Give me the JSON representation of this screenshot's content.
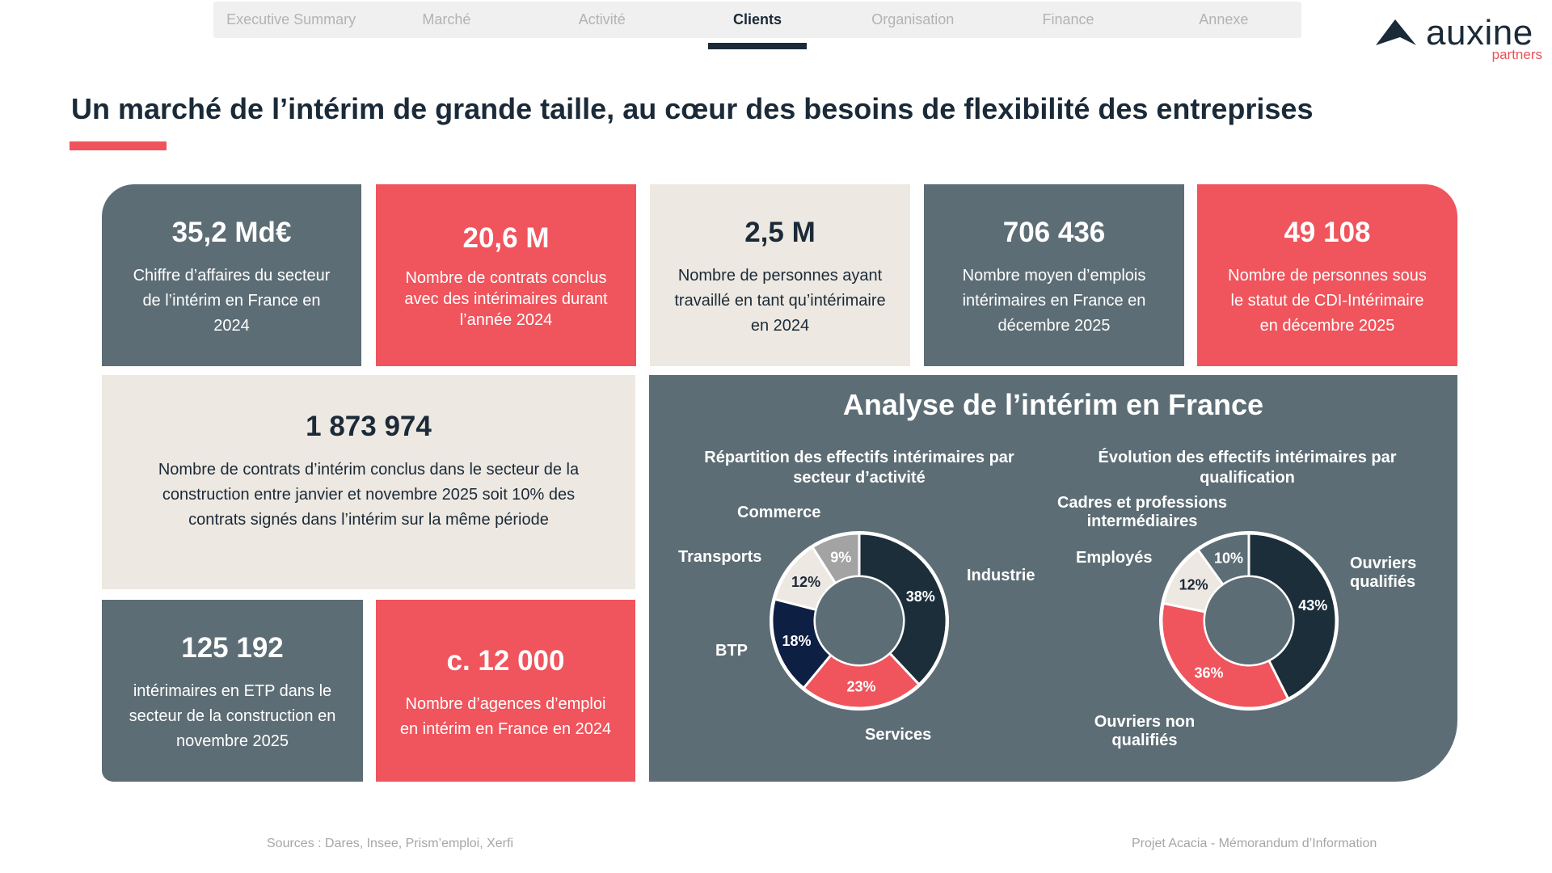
{
  "nav": {
    "tabs": [
      {
        "label": "Executive Summary",
        "active": false
      },
      {
        "label": "Marché",
        "active": false
      },
      {
        "label": "Activité",
        "active": false
      },
      {
        "label": "Clients",
        "active": true
      },
      {
        "label": "Organisation",
        "active": false
      },
      {
        "label": "Finance",
        "active": false
      },
      {
        "label": "Annexe",
        "active": false
      }
    ]
  },
  "logo": {
    "word": "auxine",
    "sub": "partners",
    "icon": "auxine-logo-icon"
  },
  "title": "Un marché de l’intérim de grande taille, au cœur des besoins de flexibilité des entreprises",
  "cards": [
    {
      "value": "35,2 Md€",
      "lines": [
        "Chiffre d’affaires du secteur",
        "de l’intérim en France en",
        "2024"
      ]
    },
    {
      "value": "20,6 M",
      "lines": [
        "Nombre de contrats conclus",
        "avec des intérimaires durant",
        "l’année 2024"
      ]
    },
    {
      "value": "2,5 M",
      "lines": [
        "Nombre de personnes ayant",
        "travaillé en tant qu’intérimaire",
        "en 2024"
      ]
    },
    {
      "value": "706 436",
      "lines": [
        "Nombre moyen d’emplois",
        "intérimaires en France en",
        "décembre 2025"
      ]
    },
    {
      "value": "49 108",
      "lines": [
        "Nombre de personnes sous",
        "le statut de CDI-Intérimaire",
        "en décembre 2025"
      ]
    },
    {
      "value": "1 873 974",
      "lines": [
        "Nombre de contrats d’intérim conclus dans le secteur de la",
        "construction entre janvier et novembre 2025 soit 10% des",
        "contrats signés dans l’intérim sur la même période"
      ]
    },
    {
      "value": "125 192",
      "lines": [
        "intérimaires en ETP dans le",
        "secteur de la construction en",
        "novembre 2025"
      ]
    },
    {
      "value": "c. 12 000",
      "lines": [
        "Nombre d’agences d’emploi",
        "en intérim en France en 2024"
      ]
    }
  ],
  "panel": {
    "title": "Analyse de l’intérim en France"
  },
  "chart_data": [
    {
      "type": "pie",
      "title": "Répartition des effectifs intérimaires par secteur d’activité",
      "title_lines": [
        "Répartition des effectifs intérimaires par",
        "secteur d’activité"
      ],
      "categories": [
        "Industrie",
        "Services",
        "BTP",
        "Transports",
        "Commerce"
      ],
      "values": [
        38,
        23,
        18,
        12,
        9
      ],
      "value_labels": [
        "38%",
        "23%",
        "18%",
        "12%",
        "9%"
      ],
      "colors": [
        "#1b2e3a",
        "#f0545c",
        "#0e1f44",
        "#ede8e1",
        "#a3a3a3"
      ],
      "label_colors": [
        "#ffffff",
        "#ffffff",
        "#ffffff",
        "#1b2a38",
        "#ffffff"
      ],
      "legend_lines": [
        [
          "Industrie"
        ],
        [
          "Services"
        ],
        [
          "BTP"
        ],
        [
          "Transports"
        ],
        [
          "Commerce"
        ]
      ]
    },
    {
      "type": "pie",
      "title": "Évolution des effectifs intérimaires par qualification",
      "title_lines": [
        "Évolution des effectifs intérimaires par",
        "qualification"
      ],
      "categories": [
        "Ouvriers qualifiés",
        "Ouvriers non qualifiés",
        "Employés",
        "Cadres et professions intermédiaires"
      ],
      "values": [
        43,
        36,
        12,
        10
      ],
      "value_labels": [
        "43%",
        "36%",
        "12%",
        "10%"
      ],
      "colors": [
        "#1b2e3a",
        "#f0545c",
        "#ede8e1",
        "#5d6d75"
      ],
      "label_colors": [
        "#ffffff",
        "#ffffff",
        "#1b2a38",
        "#ffffff"
      ],
      "legend_lines": [
        [
          "Ouvriers",
          "qualifiés"
        ],
        [
          "Ouvriers non",
          "qualifiés"
        ],
        [
          "Employés"
        ],
        [
          "Cadres et professions",
          "intermédiaires"
        ]
      ]
    }
  ],
  "footer": {
    "sources": "Sources : Dares, Insee, Prism’emploi, Xerfi",
    "project": "Projet Acacia - Mémorandum d’Information"
  }
}
